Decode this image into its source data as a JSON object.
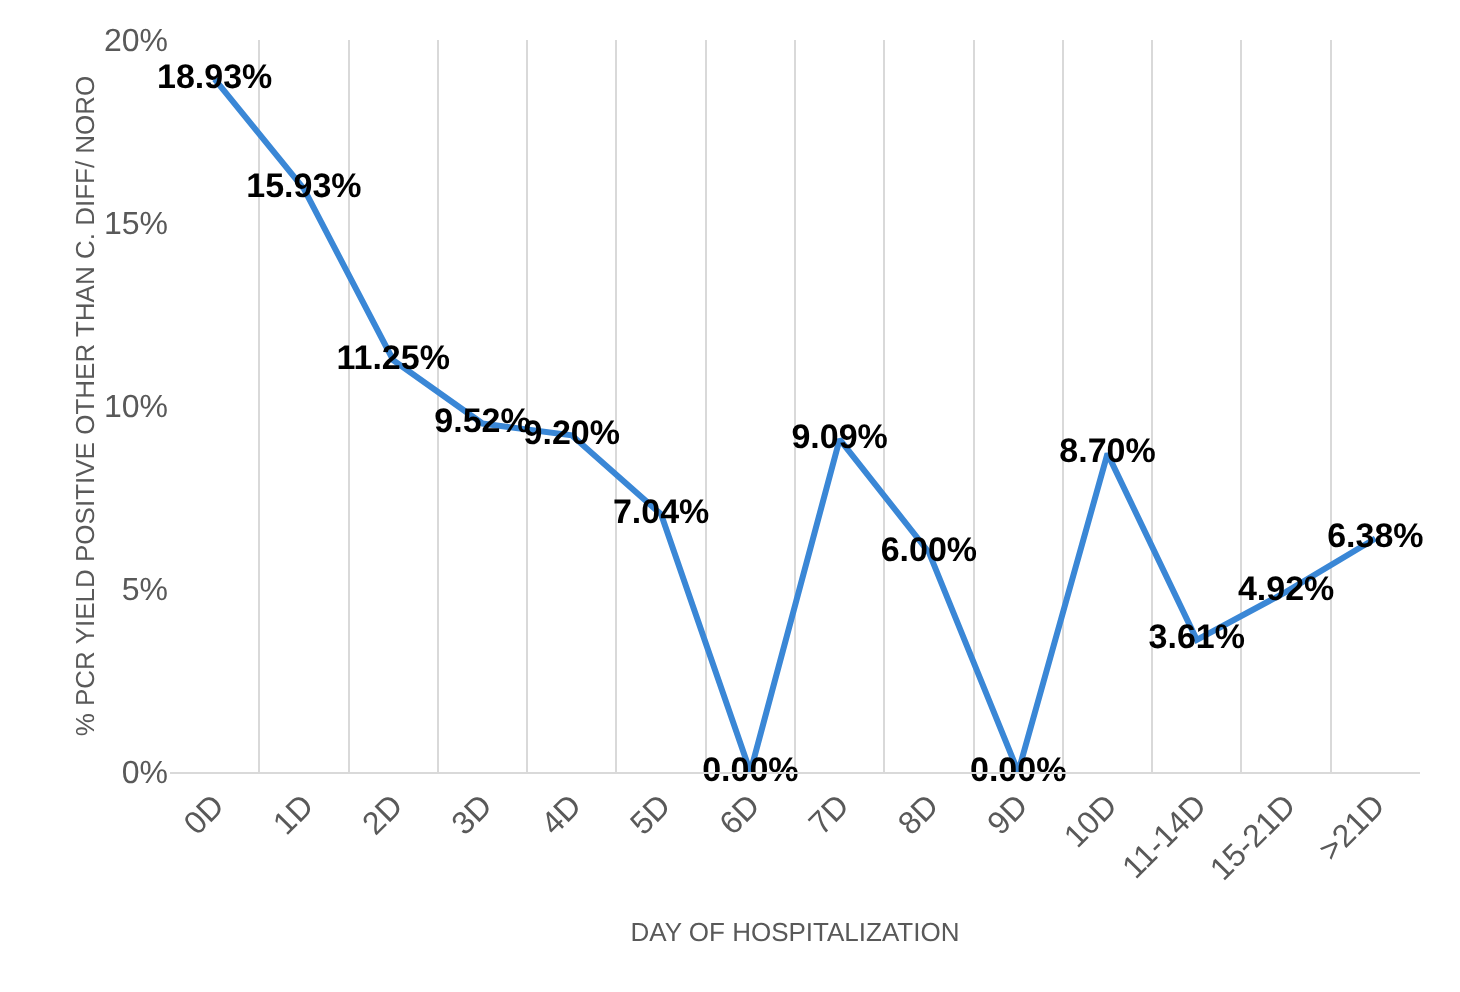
{
  "chart_data": {
    "type": "line",
    "xlabel": "DAY OF HOSPITALIZATION",
    "ylabel": "% PCR YIELD POSITIVE OTHER THAN C. DIFF/ NORO",
    "categories": [
      "0D",
      "1D",
      "2D",
      "3D",
      "4D",
      "5D",
      "6D",
      "7D",
      "8D",
      "9D",
      "10D",
      "11-14D",
      "15-21D",
      ">21D"
    ],
    "series": [
      {
        "color": "#3a87d6",
        "values": [
          18.93,
          15.93,
          11.25,
          9.52,
          9.2,
          7.04,
          0.0,
          9.09,
          6.0,
          0.0,
          8.7,
          3.61,
          4.92,
          6.38
        ],
        "value_labels": [
          "18.93%",
          "15.93%",
          "11.25%",
          "9.52%",
          "9.20%",
          "7.04%",
          "0.00%",
          "9.09%",
          "6.00%",
          "0.00%",
          "8.70%",
          "3.61%",
          "4.92%",
          "6.38%"
        ]
      }
    ],
    "ylim": [
      0,
      20
    ],
    "yticks": [
      {
        "value": 0,
        "label": "0%"
      },
      {
        "value": 5,
        "label": "5%"
      },
      {
        "value": 10,
        "label": "10%"
      },
      {
        "value": 15,
        "label": "15%"
      },
      {
        "value": 20,
        "label": "20%"
      }
    ],
    "grid": "x",
    "marker": "none",
    "line_style": "solid"
  }
}
